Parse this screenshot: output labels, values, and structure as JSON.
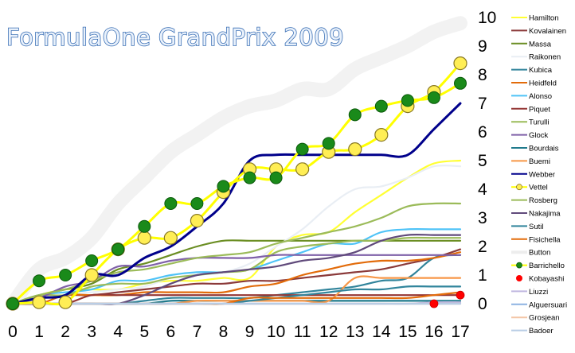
{
  "chart_data": {
    "type": "line",
    "title": "FormulaOne GrandPrix 2009",
    "xlabel": "",
    "ylabel": "",
    "x": [
      0,
      1,
      2,
      3,
      4,
      5,
      6,
      7,
      8,
      9,
      10,
      11,
      12,
      13,
      14,
      15,
      16,
      17
    ],
    "xlim": [
      0,
      17
    ],
    "ylim": [
      0,
      10
    ],
    "x_ticks": [
      "0",
      "1",
      "2",
      "3",
      "4",
      "5",
      "6",
      "7",
      "8",
      "9",
      "10",
      "11",
      "12",
      "13",
      "14",
      "15",
      "16",
      "17"
    ],
    "y_ticks": [
      "0",
      "1",
      "2",
      "3",
      "4",
      "5",
      "6",
      "7",
      "8",
      "9",
      "10"
    ],
    "grid": false,
    "legend_position": "right",
    "series": [
      {
        "name": "Hamilton",
        "color": "#ffff33",
        "marker": "none",
        "values": [
          0,
          0.3,
          0.5,
          0.5,
          0.5,
          0.7,
          0.8,
          0.8,
          0.9,
          0.9,
          2.0,
          2.4,
          2.5,
          3.2,
          3.8,
          4.4,
          4.9,
          5.0
        ]
      },
      {
        "name": "Kovalainen",
        "color": "#8b3a3a",
        "marker": "none",
        "values": [
          0,
          0.2,
          0.3,
          0.3,
          0.4,
          0.5,
          0.6,
          0.7,
          0.7,
          0.8,
          0.8,
          0.9,
          1.0,
          1.1,
          1.2,
          1.4,
          1.6,
          1.9
        ]
      },
      {
        "name": "Massa",
        "color": "#6b8e23",
        "marker": "none",
        "values": [
          0,
          0.3,
          0.5,
          0.7,
          1.2,
          1.4,
          1.7,
          2.0,
          2.2,
          2.2,
          2.2,
          2.2,
          2.2,
          2.2,
          2.2,
          2.2,
          2.2,
          2.2
        ]
      },
      {
        "name": "Raikonen",
        "color": "#e9eef4",
        "marker": "none",
        "values": [
          0,
          0.2,
          0.3,
          0.4,
          0.5,
          0.6,
          0.9,
          1.0,
          1.1,
          1.4,
          2.0,
          2.6,
          3.4,
          4.0,
          4.1,
          4.4,
          4.8,
          4.8
        ]
      },
      {
        "name": "Kubica",
        "color": "#31849b",
        "marker": "none",
        "values": [
          0,
          0,
          0,
          0,
          0,
          0.1,
          0.2,
          0.2,
          0.2,
          0.2,
          0.3,
          0.4,
          0.5,
          0.6,
          0.8,
          0.9,
          1.6,
          1.7
        ]
      },
      {
        "name": "Heidfeld",
        "color": "#e26b0a",
        "marker": "none",
        "values": [
          0,
          0,
          0.3,
          0.3,
          0.3,
          0.4,
          0.4,
          0.4,
          0.4,
          0.6,
          0.7,
          1.0,
          1.2,
          1.4,
          1.5,
          1.5,
          1.6,
          1.8
        ]
      },
      {
        "name": "Alonso",
        "color": "#4fc3f7",
        "marker": "none",
        "values": [
          0,
          0.3,
          0.4,
          0.5,
          0.8,
          0.8,
          1.0,
          1.1,
          1.1,
          1.2,
          1.5,
          1.8,
          2.1,
          2.1,
          2.5,
          2.6,
          2.6,
          2.6
        ]
      },
      {
        "name": "Piquet",
        "color": "#943634",
        "marker": "none",
        "values": [
          0,
          0,
          0,
          0.3,
          0.3,
          0.3,
          0.3,
          0.3,
          0.3,
          0.3,
          0.3,
          0.3,
          0.3,
          0.3,
          0.3,
          0.3,
          0.3,
          0.3
        ]
      },
      {
        "name": "Turulli",
        "color": "#9bbb59",
        "marker": "none",
        "values": [
          0,
          0.3,
          0.3,
          0.6,
          0.7,
          0.7,
          0.9,
          1.0,
          1.1,
          1.2,
          1.8,
          2.0,
          2.1,
          2.2,
          2.2,
          2.3,
          2.3,
          2.3
        ]
      },
      {
        "name": "Glock",
        "color": "#7f60a8",
        "marker": "none",
        "values": [
          0,
          0.2,
          0.6,
          0.8,
          1.3,
          1.3,
          1.5,
          1.6,
          1.6,
          1.6,
          1.7,
          1.7,
          1.7,
          1.7,
          1.7,
          1.7,
          1.7,
          1.7
        ]
      },
      {
        "name": "Bourdais",
        "color": "#1f7a8c",
        "marker": "none",
        "values": [
          0,
          0,
          0,
          0,
          0,
          0,
          0.1,
          0.1,
          0.1,
          0.1,
          0.1,
          0.1,
          0.1,
          0.1,
          0.1,
          0.1,
          0.1,
          0.1
        ]
      },
      {
        "name": "Buemi",
        "color": "#f79646",
        "marker": "none",
        "values": [
          0,
          0,
          0,
          0,
          0,
          0,
          0,
          0.1,
          0.1,
          0.1,
          0.1,
          0.1,
          0.1,
          0.9,
          0.9,
          0.9,
          0.9,
          0.9
        ]
      },
      {
        "name": "Webber",
        "color": "#00008b",
        "marker": "none",
        "values": [
          0,
          0.2,
          0.3,
          1.0,
          1.0,
          1.6,
          2.0,
          2.7,
          3.5,
          5.0,
          5.2,
          5.2,
          5.2,
          5.2,
          5.2,
          5.2,
          6.1,
          7.0
        ]
      },
      {
        "name": "Vettel",
        "color": "#ffff00",
        "marker": "circle-gold",
        "values": [
          0,
          0.05,
          0.05,
          1.0,
          1.9,
          2.3,
          2.3,
          2.9,
          3.9,
          4.7,
          4.7,
          4.7,
          5.3,
          5.4,
          5.9,
          6.9,
          7.4,
          8.4
        ]
      },
      {
        "name": "Rosberg",
        "color": "#9bbb59",
        "marker": "none",
        "values": [
          0,
          0.3,
          0.5,
          0.8,
          1.1,
          1.2,
          1.4,
          1.6,
          1.7,
          1.8,
          2.1,
          2.3,
          2.5,
          2.7,
          3.0,
          3.4,
          3.5,
          3.5
        ]
      },
      {
        "name": "Nakajima",
        "color": "#604a7b",
        "marker": "none",
        "values": [
          0,
          0,
          0,
          0,
          0,
          0.3,
          0.7,
          1.0,
          1.1,
          1.2,
          1.3,
          1.5,
          1.6,
          1.8,
          2.2,
          2.4,
          2.4,
          2.4
        ]
      },
      {
        "name": "Sutil",
        "color": "#31859c",
        "marker": "none",
        "values": [
          0,
          0,
          0,
          0,
          0,
          0,
          0,
          0,
          0,
          0.1,
          0.2,
          0.3,
          0.4,
          0.5,
          0.5,
          0.6,
          0.6,
          0.6
        ]
      },
      {
        "name": "Fisichella",
        "color": "#e46c0a",
        "marker": "none",
        "values": [
          0,
          0,
          0,
          0,
          0,
          0,
          0,
          0,
          0,
          0.2,
          0.2,
          0.2,
          0.2,
          0.2,
          0.2,
          0.2,
          0.3,
          0.4
        ]
      },
      {
        "name": "Button",
        "color": "#f2f2f2",
        "marker": "none",
        "values": [
          0,
          1.2,
          1.6,
          2.3,
          3.5,
          4.4,
          5.3,
          5.9,
          6.5,
          6.9,
          7.1,
          7.5,
          7.5,
          8.2,
          8.6,
          9.0,
          9.5,
          9.8
        ]
      },
      {
        "name": "Barrichello",
        "color": "#ffff00",
        "marker": "circle-green",
        "values": [
          0,
          0.8,
          1.0,
          1.5,
          1.9,
          2.7,
          3.5,
          3.5,
          4.1,
          4.4,
          4.4,
          5.4,
          5.6,
          6.6,
          6.9,
          7.1,
          7.2,
          7.7
        ]
      },
      {
        "name": "Kobayashi",
        "color": "#ff0000",
        "marker": "dot-red",
        "values": [
          null,
          null,
          null,
          null,
          null,
          null,
          null,
          null,
          null,
          null,
          null,
          null,
          null,
          null,
          null,
          null,
          0,
          0.3
        ]
      },
      {
        "name": "Liuzzi",
        "color": "#c0b8e0",
        "marker": "none",
        "values": [
          0,
          0,
          0,
          0,
          0,
          0,
          0,
          0,
          0,
          0,
          0,
          0,
          0,
          0,
          0,
          0,
          0.05,
          0.05
        ]
      },
      {
        "name": "Alguersuari",
        "color": "#8db3e2",
        "marker": "none",
        "values": [
          0,
          0,
          0,
          0,
          0,
          0,
          0,
          0,
          0,
          0,
          0,
          0,
          0,
          0,
          0,
          0,
          0,
          0
        ]
      },
      {
        "name": "Grosjean",
        "color": "#f4c6a7",
        "marker": "none",
        "values": [
          0,
          0,
          0,
          0,
          0,
          0,
          0,
          0,
          0,
          0,
          0,
          0,
          0,
          0,
          0,
          0,
          0,
          0
        ]
      },
      {
        "name": "Badoer",
        "color": "#b9cde5",
        "marker": "none",
        "values": [
          0,
          0,
          0,
          0,
          0,
          0,
          0,
          0,
          0,
          0,
          0,
          0,
          0,
          0,
          0,
          0,
          0,
          0
        ]
      }
    ]
  }
}
